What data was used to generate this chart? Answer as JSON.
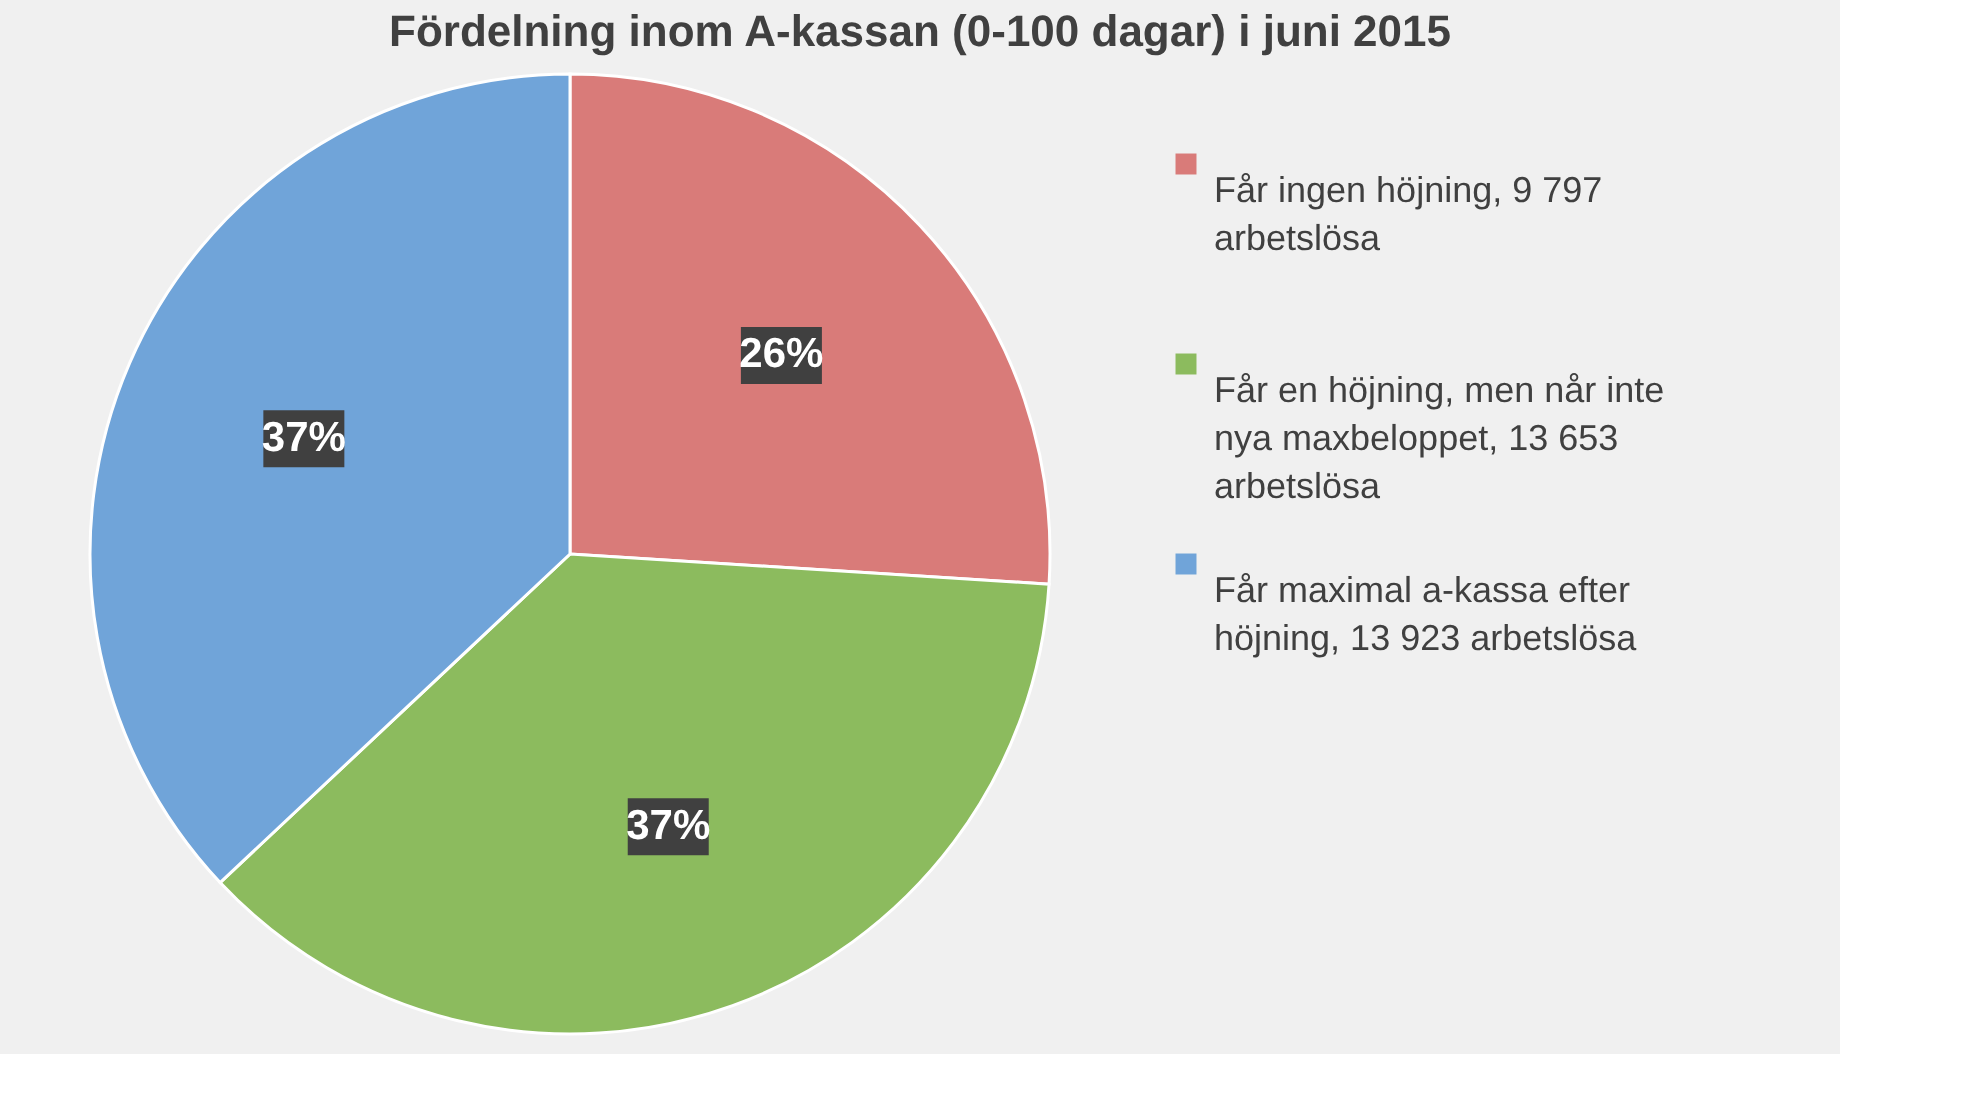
{
  "chart_data": {
    "type": "pie",
    "title": "Fördelning inom A-kassan (0-100 dagar) i juni 2015",
    "categories": [
      "Får ingen höjning, 9 797 arbetslösa",
      "Får en höjning, men når inte nya maxbeloppet, 13 653 arbetslösa",
      "Får maximal a-kassa efter höjning, 13 923 arbetslösa"
    ],
    "values": [
      26,
      37,
      37
    ],
    "value_labels": [
      "26%",
      "37%",
      "37%"
    ],
    "colors": [
      "#d97b79",
      "#8cbb5e",
      "#70a4d9"
    ],
    "legend": "right"
  }
}
